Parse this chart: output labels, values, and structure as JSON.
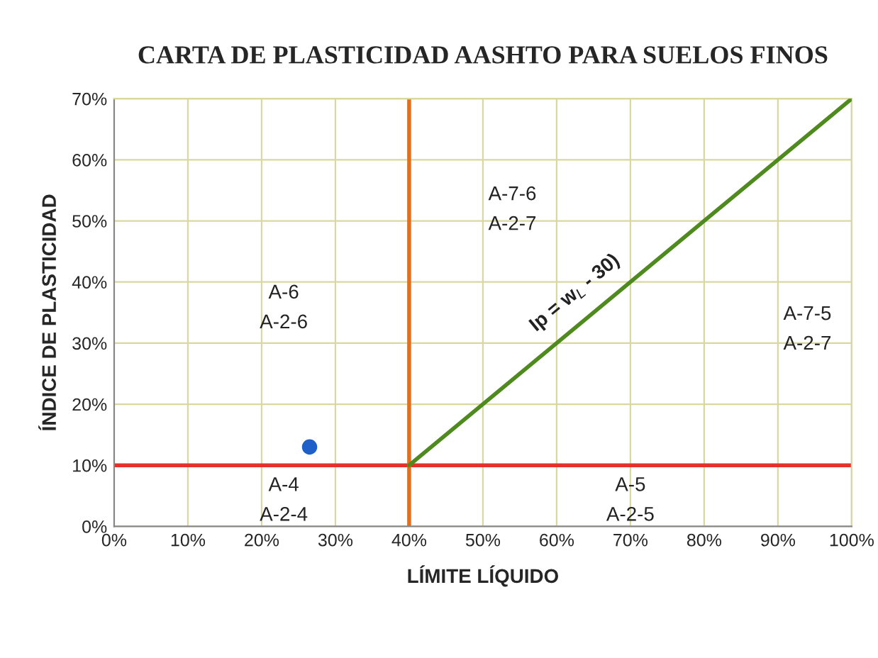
{
  "chart_data": {
    "type": "scatter",
    "title": "CARTA DE PLASTICIDAD AASHTO PARA SUELOS FINOS",
    "xlabel": "LÍMITE LÍQUIDO",
    "ylabel": "ÍNDICE DE PLASTICIDAD",
    "xlim": [
      0,
      100
    ],
    "ylim": [
      0,
      70
    ],
    "xticks": [
      {
        "value": 0,
        "label": "0%"
      },
      {
        "value": 10,
        "label": "10%"
      },
      {
        "value": 20,
        "label": "20%"
      },
      {
        "value": 30,
        "label": "30%"
      },
      {
        "value": 40,
        "label": "40%"
      },
      {
        "value": 50,
        "label": "50%"
      },
      {
        "value": 60,
        "label": "60%"
      },
      {
        "value": 70,
        "label": "70%"
      },
      {
        "value": 80,
        "label": "80%"
      },
      {
        "value": 90,
        "label": "90%"
      },
      {
        "value": 100,
        "label": "100%"
      }
    ],
    "yticks": [
      {
        "value": 0,
        "label": "0%"
      },
      {
        "value": 10,
        "label": "10%"
      },
      {
        "value": 20,
        "label": "20%"
      },
      {
        "value": 30,
        "label": "30%"
      },
      {
        "value": 40,
        "label": "40%"
      },
      {
        "value": 50,
        "label": "50%"
      },
      {
        "value": 60,
        "label": "60%"
      },
      {
        "value": 70,
        "label": "70%"
      }
    ],
    "grid": true,
    "series": [
      {
        "type": "line",
        "color": "#4e8a1e",
        "x": [
          40,
          100
        ],
        "values": [
          10,
          70
        ],
        "marker": "none"
      },
      {
        "color": "#1f5fc8",
        "x": [
          26.5
        ],
        "values": [
          13
        ],
        "marker": "circle"
      }
    ],
    "ref_lines": [
      {
        "axis": "y",
        "value": 10,
        "color": "#e8302a"
      },
      {
        "axis": "x",
        "value": 40,
        "color": "#e07020"
      }
    ],
    "annotations": [
      "A-6\nA-2-6",
      "A-7-6\nA-2-7",
      "A-7-5\nA-2-7",
      "A-4\nA-2-4",
      "A-5\nA-2-5",
      "Ip = w$_{L}$ - 30)"
    ]
  }
}
